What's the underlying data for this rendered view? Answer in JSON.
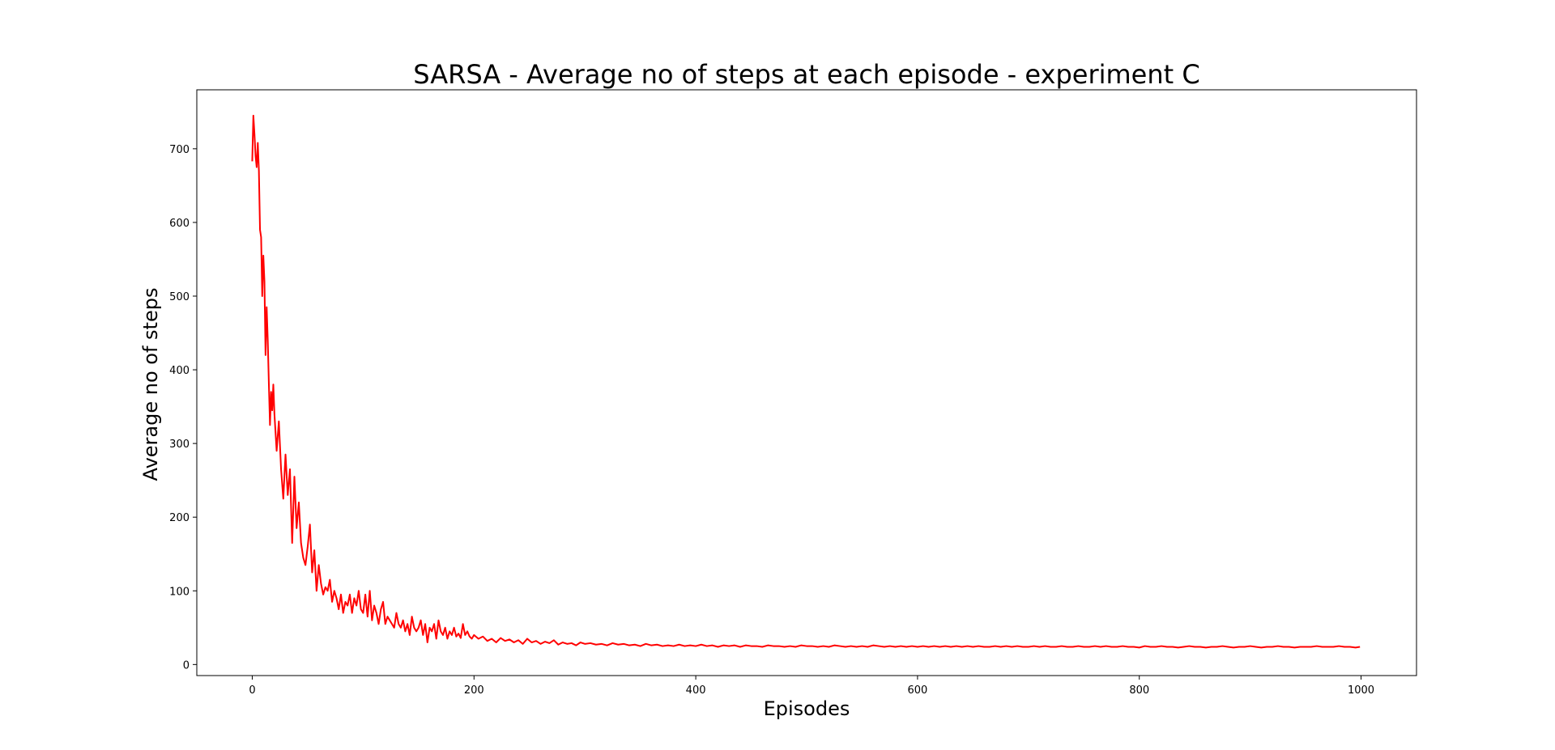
{
  "chart_data": {
    "type": "line",
    "title": "SARSA - Average no of steps at each episode - experiment C",
    "xlabel": "Episodes",
    "ylabel": "Average no of steps",
    "xlim": [
      -50,
      1050
    ],
    "ylim": [
      -15,
      780
    ],
    "xticks": [
      0,
      200,
      400,
      600,
      800,
      1000
    ],
    "yticks": [
      0,
      100,
      200,
      300,
      400,
      500,
      600,
      700
    ],
    "grid": false,
    "legend": "none",
    "series": [
      {
        "color": "#ff0000",
        "x": [
          0,
          1,
          2,
          3,
          4,
          5,
          6,
          7,
          8,
          9,
          10,
          11,
          12,
          13,
          14,
          15,
          16,
          17,
          18,
          19,
          20,
          22,
          24,
          26,
          28,
          30,
          32,
          34,
          36,
          38,
          40,
          42,
          44,
          46,
          48,
          50,
          52,
          54,
          56,
          58,
          60,
          62,
          64,
          66,
          68,
          70,
          72,
          74,
          76,
          78,
          80,
          82,
          84,
          86,
          88,
          90,
          92,
          94,
          96,
          98,
          100,
          102,
          104,
          106,
          108,
          110,
          112,
          114,
          116,
          118,
          120,
          122,
          124,
          126,
          128,
          130,
          132,
          134,
          136,
          138,
          140,
          142,
          144,
          146,
          148,
          150,
          152,
          154,
          156,
          158,
          160,
          162,
          164,
          166,
          168,
          170,
          172,
          174,
          176,
          178,
          180,
          182,
          184,
          186,
          188,
          190,
          192,
          194,
          196,
          198,
          200,
          204,
          208,
          212,
          216,
          220,
          224,
          228,
          232,
          236,
          240,
          244,
          248,
          252,
          256,
          260,
          264,
          268,
          272,
          276,
          280,
          284,
          288,
          292,
          296,
          300,
          305,
          310,
          315,
          320,
          325,
          330,
          335,
          340,
          345,
          350,
          355,
          360,
          365,
          370,
          375,
          380,
          385,
          390,
          395,
          400,
          405,
          410,
          415,
          420,
          425,
          430,
          435,
          440,
          445,
          450,
          455,
          460,
          465,
          470,
          475,
          480,
          485,
          490,
          495,
          500,
          505,
          510,
          515,
          520,
          525,
          530,
          535,
          540,
          545,
          550,
          555,
          560,
          565,
          570,
          575,
          580,
          585,
          590,
          595,
          600,
          605,
          610,
          615,
          620,
          625,
          630,
          635,
          640,
          645,
          650,
          655,
          660,
          665,
          670,
          675,
          680,
          685,
          690,
          695,
          700,
          705,
          710,
          715,
          720,
          725,
          730,
          735,
          740,
          745,
          750,
          755,
          760,
          765,
          770,
          775,
          780,
          785,
          790,
          795,
          800,
          805,
          810,
          815,
          820,
          825,
          830,
          835,
          840,
          845,
          850,
          855,
          860,
          865,
          870,
          875,
          880,
          885,
          890,
          895,
          900,
          905,
          910,
          915,
          920,
          925,
          930,
          935,
          940,
          945,
          950,
          955,
          960,
          965,
          970,
          975,
          980,
          985,
          990,
          995,
          999
        ],
        "y": [
          683,
          745,
          720,
          690,
          675,
          708,
          670,
          590,
          580,
          500,
          555,
          520,
          420,
          485,
          440,
          380,
          325,
          370,
          345,
          380,
          340,
          290,
          330,
          265,
          225,
          285,
          230,
          265,
          165,
          255,
          185,
          220,
          165,
          145,
          135,
          160,
          190,
          125,
          155,
          100,
          135,
          110,
          95,
          105,
          100,
          115,
          85,
          100,
          90,
          75,
          95,
          70,
          85,
          80,
          95,
          70,
          90,
          80,
          100,
          75,
          70,
          95,
          65,
          100,
          60,
          80,
          70,
          55,
          75,
          85,
          55,
          65,
          60,
          55,
          50,
          70,
          55,
          50,
          60,
          45,
          55,
          40,
          65,
          50,
          45,
          50,
          60,
          40,
          55,
          30,
          50,
          45,
          55,
          35,
          60,
          45,
          40,
          50,
          35,
          45,
          40,
          50,
          38,
          42,
          36,
          55,
          40,
          45,
          38,
          35,
          40,
          35,
          38,
          32,
          35,
          30,
          36,
          32,
          34,
          30,
          33,
          28,
          35,
          30,
          32,
          28,
          31,
          29,
          33,
          27,
          30,
          28,
          29,
          26,
          30,
          28,
          29,
          27,
          28,
          26,
          29,
          27,
          28,
          26,
          27,
          25,
          28,
          26,
          27,
          25,
          26,
          25,
          27,
          25,
          26,
          25,
          27,
          25,
          26,
          24,
          26,
          25,
          26,
          24,
          26,
          25,
          25,
          24,
          26,
          25,
          25,
          24,
          25,
          24,
          26,
          25,
          25,
          24,
          25,
          24,
          26,
          25,
          24,
          25,
          24,
          25,
          24,
          26,
          25,
          24,
          25,
          24,
          25,
          24,
          25,
          24,
          25,
          24,
          25,
          24,
          25,
          24,
          25,
          24,
          25,
          24,
          25,
          24,
          24,
          25,
          24,
          25,
          24,
          25,
          24,
          24,
          25,
          24,
          25,
          24,
          24,
          25,
          24,
          24,
          25,
          24,
          24,
          25,
          24,
          25,
          24,
          24,
          25,
          24,
          24,
          23,
          25,
          24,
          24,
          25,
          24,
          24,
          23,
          24,
          25,
          24,
          24,
          23,
          24,
          24,
          25,
          24,
          23,
          24,
          24,
          25,
          24,
          23,
          24,
          24,
          25,
          24,
          24,
          23,
          24,
          24,
          24,
          25,
          24,
          24,
          24,
          25,
          24,
          24,
          23,
          24
        ]
      }
    ]
  }
}
